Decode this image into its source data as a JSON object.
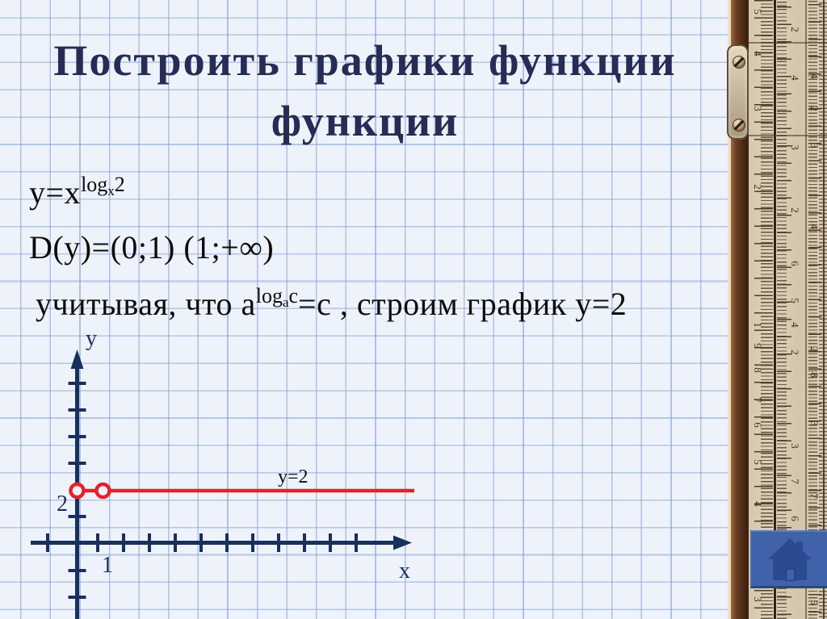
{
  "title": {
    "line1": "Построить графики функции",
    "line2": "функции"
  },
  "formulas": {
    "f1_lhs": "y=x",
    "f1_sup_fn": "log",
    "f1_sup_base": "x",
    "f1_sup_arg": "2",
    "f2": "D(y)=(0;1) (1;+∞)",
    "f3_pre": "учитывая, что a",
    "f3_sup_fn": "log",
    "f3_sup_base": "a",
    "f3_sup_arg": "c",
    "f3_post": "=c , строим график y=2"
  },
  "chart_data": {
    "type": "line",
    "description": "Horizontal line y=2 drawn on coordinate axes; open (excluded) points at x=0 and x=1 because D(y)=(0;1)∪(1;+∞)",
    "series": [
      {
        "name": "y=2",
        "equation": "y=2",
        "y_value": 2,
        "open_points": [
          {
            "x": 0,
            "y": 2
          },
          {
            "x": 1,
            "y": 2
          }
        ]
      }
    ],
    "xlabel": "x",
    "ylabel": "y",
    "visible_x_tick_label": "1",
    "visible_y_tick_label": "2",
    "annotation": "y=2",
    "line_color": "#e62129",
    "axis_color": "#17305e",
    "grid": "squared paper background"
  },
  "graph": {
    "y_axis_label": "y",
    "x_axis_label": "x",
    "y_value_label": "2",
    "x_value_label": "1",
    "line_label": "y=2",
    "x_ticks": [
      59,
      121,
      153,
      185,
      217,
      249,
      281,
      313,
      345,
      377,
      409,
      441
    ],
    "y_ticks": [
      475,
      508,
      541,
      574,
      640,
      707,
      740
    ]
  },
  "ruler": {
    "columns": [
      {
        "x": 40,
        "digits": [
          [
            "5",
            8
          ],
          [
            "4",
            60
          ],
          [
            "3",
            128
          ],
          [
            "2",
            225
          ],
          [
            "1",
            396
          ],
          [
            "9",
            422
          ],
          [
            "8",
            452
          ],
          [
            "7",
            489
          ],
          [
            "6",
            520
          ],
          [
            "5",
            566
          ],
          [
            "4",
            618
          ],
          [
            "3",
            736
          ]
        ]
      },
      {
        "x": 86,
        "digits": [
          [
            "2",
            30
          ],
          [
            "4",
            90
          ],
          [
            "3",
            176
          ],
          [
            "2",
            254
          ],
          [
            "6",
            320
          ],
          [
            "5",
            366
          ],
          [
            "4",
            396
          ],
          [
            "2",
            430
          ],
          [
            "3",
            546
          ],
          [
            "7",
            590
          ],
          [
            "6",
            636
          ]
        ]
      },
      {
        "x": 110,
        "digits": [
          [
            "4",
            88
          ],
          [
            "2",
            128
          ],
          [
            "3",
            174
          ],
          [
            "4",
            274
          ],
          [
            "2",
            426
          ],
          [
            "8",
            458
          ],
          [
            "3",
            518
          ],
          [
            "7",
            608
          ],
          [
            "5",
            740
          ]
        ]
      }
    ]
  },
  "colors": {
    "accent_line": "#e62129",
    "axis": "#17305e",
    "title_text": "#272c55",
    "home_button": "#4062ab"
  }
}
